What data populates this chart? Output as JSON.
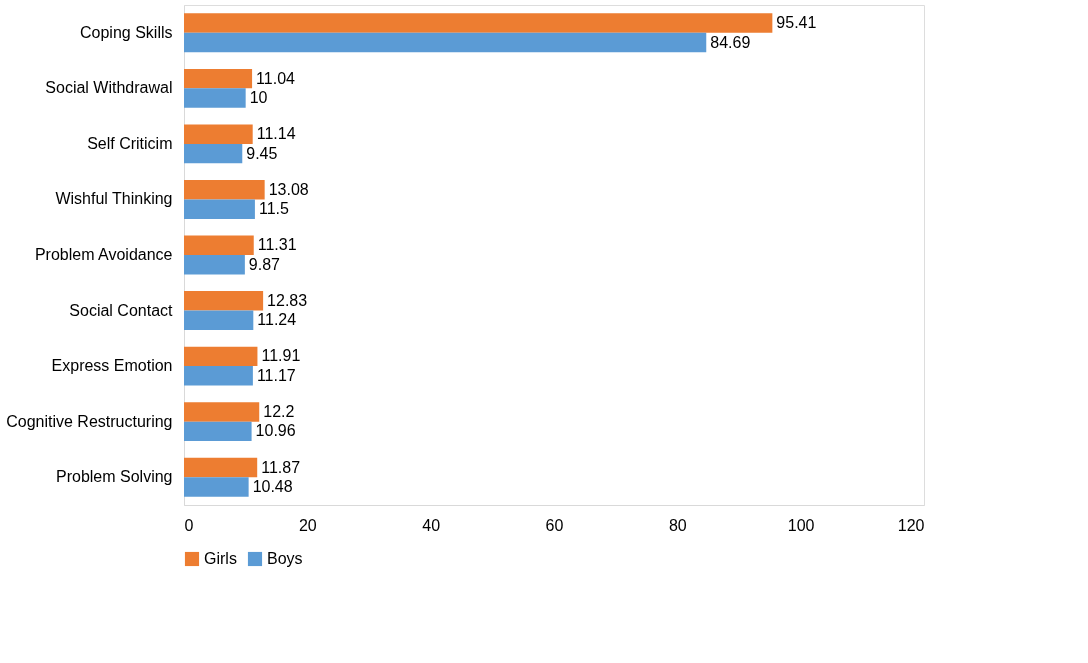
{
  "chart_data": {
    "type": "bar",
    "orientation": "horizontal",
    "categories": [
      "Coping Skills",
      "Social Withdrawal",
      "Self Criticim",
      "Wishful Thinking",
      "Problem Avoidance",
      "Social Contact",
      "Express Emotion",
      "Cognitive Restructuring",
      "Problem Solving"
    ],
    "series": [
      {
        "name": "Girls",
        "color": "#ed7d31",
        "values": [
          95.41,
          11.04,
          11.14,
          13.08,
          11.31,
          12.83,
          11.91,
          12.2,
          11.87
        ]
      },
      {
        "name": "Boys",
        "color": "#5b9bd5",
        "values": [
          84.69,
          10,
          9.45,
          11.5,
          9.87,
          11.24,
          11.17,
          10.96,
          10.48
        ]
      }
    ],
    "xlim": [
      0,
      120
    ],
    "xticks": [
      0,
      20,
      40,
      60,
      80,
      100,
      120
    ],
    "grid": false,
    "legend": "bottom",
    "data_labels": true
  }
}
